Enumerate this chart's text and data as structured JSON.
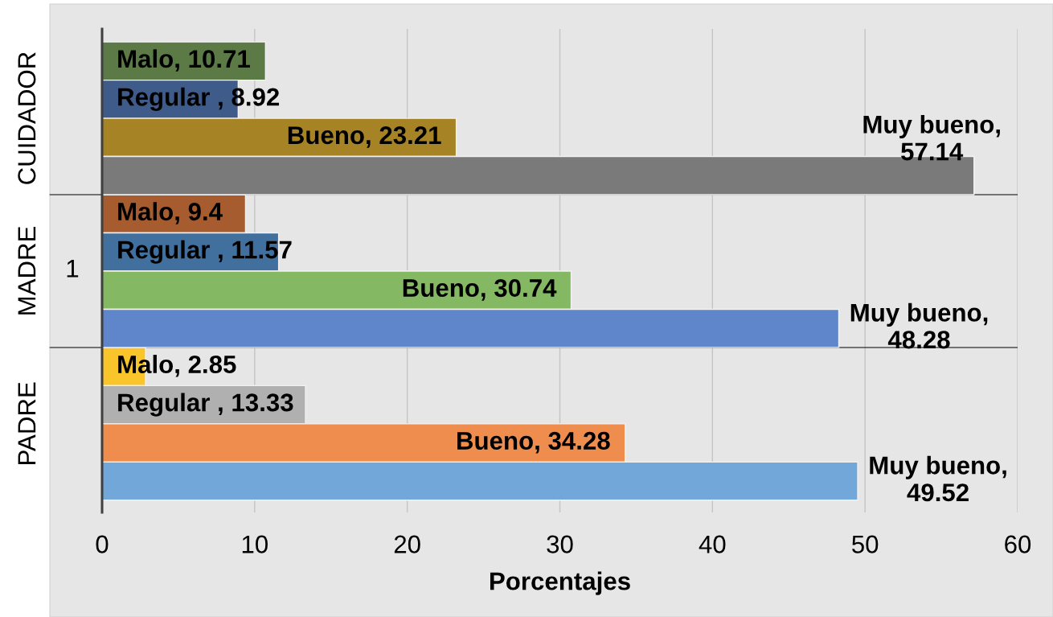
{
  "chart_data": {
    "type": "bar",
    "orientation": "horizontal",
    "xlabel": "Porcentajes",
    "categories": [
      "CUIDADOR",
      "MADRE",
      "PADRE"
    ],
    "series": [
      {
        "colors": [
          "#5b7a45",
          "#a65c2e",
          "#fac52a"
        ],
        "values": [
          10.71,
          9.4,
          2.85
        ],
        "value_labels": [
          "Malo, 10.71",
          "Malo, 9.4",
          "Malo, 2.85"
        ]
      },
      {
        "colors": [
          "#3f5b8a",
          "#41709e",
          "#b0b0b0"
        ],
        "values": [
          8.92,
          11.57,
          13.33
        ],
        "value_labels": [
          "Regular , 8.92",
          "Regular , 11.57",
          "Regular , 13.33"
        ]
      },
      {
        "colors": [
          "#a68426",
          "#84b862",
          "#ee8d4e"
        ],
        "values": [
          23.21,
          30.74,
          34.28
        ],
        "value_labels": [
          "Bueno, 23.21",
          "Bueno, 30.74",
          "Bueno, 34.28"
        ]
      },
      {
        "colors": [
          "#7a7a7a",
          "#5f86cb",
          "#72a7d9"
        ],
        "values": [
          57.14,
          48.28,
          49.52
        ],
        "value_labels": [
          "Muy bueno,\n57.14",
          "Muy bueno,\n48.28",
          "Muy bueno,\n49.52"
        ]
      }
    ],
    "xlim": [
      0,
      60
    ],
    "xticks": [
      0,
      10,
      20,
      30,
      40,
      50,
      60
    ],
    "grid": "x",
    "annotations": [
      "1"
    ]
  }
}
